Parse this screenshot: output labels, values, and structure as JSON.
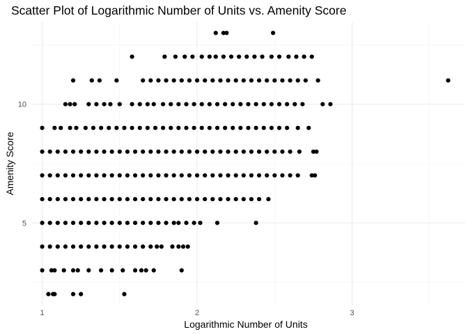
{
  "chart_data": {
    "type": "scatter",
    "title": "Scatter Plot of Logarithmic Number of Units vs. Amenity Score",
    "xlabel": "Logarithmic Number of Units",
    "ylabel": "Amenity Score",
    "xlim": [
      0.93,
      3.73
    ],
    "ylim": [
      1.55,
      13.45
    ],
    "x_ticks": [
      1,
      2,
      3
    ],
    "y_ticks": [
      5,
      10
    ],
    "grid": true,
    "legend": "none",
    "point_color": "#000000",
    "series": [
      {
        "y": 2,
        "x": [
          1.04,
          1.07,
          1.08,
          1.2,
          1.25,
          1.53
        ]
      },
      {
        "y": 3,
        "x": [
          1.0,
          1.06,
          1.08,
          1.14,
          1.2,
          1.23,
          1.3,
          1.38,
          1.45,
          1.52,
          1.6,
          1.64,
          1.67,
          1.72,
          1.9
        ]
      },
      {
        "y": 4,
        "x": [
          1.0,
          1.05,
          1.1,
          1.15,
          1.2,
          1.25,
          1.3,
          1.35,
          1.4,
          1.45,
          1.5,
          1.55,
          1.6,
          1.65,
          1.7,
          1.74,
          1.77,
          1.84,
          1.88,
          1.91,
          1.94
        ]
      },
      {
        "y": 5,
        "x": [
          1.0,
          1.05,
          1.1,
          1.15,
          1.2,
          1.25,
          1.3,
          1.35,
          1.4,
          1.45,
          1.5,
          1.55,
          1.6,
          1.65,
          1.7,
          1.75,
          1.8,
          1.85,
          1.88,
          1.93,
          1.98,
          2.02,
          2.13,
          2.38
        ]
      },
      {
        "y": 6,
        "x": [
          1.0,
          1.05,
          1.1,
          1.15,
          1.2,
          1.25,
          1.3,
          1.35,
          1.4,
          1.45,
          1.5,
          1.55,
          1.6,
          1.65,
          1.7,
          1.75,
          1.8,
          1.85,
          1.9,
          1.95,
          2.0,
          2.05,
          2.1,
          2.15,
          2.2,
          2.25,
          2.3,
          2.35,
          2.4,
          2.46
        ]
      },
      {
        "y": 7,
        "x": [
          1.0,
          1.05,
          1.1,
          1.15,
          1.2,
          1.25,
          1.3,
          1.35,
          1.4,
          1.45,
          1.5,
          1.55,
          1.6,
          1.65,
          1.7,
          1.75,
          1.8,
          1.85,
          1.9,
          1.95,
          2.0,
          2.05,
          2.1,
          2.15,
          2.2,
          2.25,
          2.3,
          2.35,
          2.4,
          2.45,
          2.5,
          2.55,
          2.6,
          2.65,
          2.74,
          2.76
        ]
      },
      {
        "y": 8,
        "x": [
          1.0,
          1.05,
          1.1,
          1.15,
          1.2,
          1.25,
          1.3,
          1.35,
          1.4,
          1.45,
          1.5,
          1.55,
          1.6,
          1.65,
          1.7,
          1.75,
          1.8,
          1.85,
          1.9,
          1.95,
          2.0,
          2.05,
          2.1,
          2.15,
          2.2,
          2.25,
          2.3,
          2.35,
          2.4,
          2.45,
          2.5,
          2.55,
          2.6,
          2.66,
          2.75,
          2.77
        ]
      },
      {
        "y": 9,
        "x": [
          1.0,
          1.08,
          1.12,
          1.18,
          1.22,
          1.28,
          1.33,
          1.38,
          1.43,
          1.48,
          1.53,
          1.58,
          1.63,
          1.68,
          1.73,
          1.78,
          1.83,
          1.88,
          1.93,
          1.98,
          2.03,
          2.08,
          2.13,
          2.18,
          2.23,
          2.28,
          2.33,
          2.38,
          2.43,
          2.48,
          2.53,
          2.58,
          2.65,
          2.72
        ]
      },
      {
        "y": 10,
        "x": [
          1.15,
          1.18,
          1.21,
          1.3,
          1.35,
          1.4,
          1.44,
          1.5,
          1.58,
          1.63,
          1.68,
          1.72,
          1.78,
          1.83,
          1.88,
          1.93,
          1.98,
          2.03,
          2.08,
          2.13,
          2.18,
          2.23,
          2.28,
          2.33,
          2.38,
          2.43,
          2.48,
          2.53,
          2.58,
          2.63,
          2.68,
          2.81,
          2.86
        ]
      },
      {
        "y": 11,
        "x": [
          1.2,
          1.32,
          1.37,
          1.48,
          1.65,
          1.7,
          1.75,
          1.8,
          1.85,
          1.9,
          1.95,
          2.0,
          2.05,
          2.1,
          2.15,
          2.2,
          2.25,
          2.3,
          2.35,
          2.4,
          2.45,
          2.5,
          2.55,
          2.6,
          2.65,
          2.7,
          2.78,
          3.62
        ]
      },
      {
        "y": 12,
        "x": [
          1.58,
          1.79,
          1.86,
          1.92,
          1.97,
          2.03,
          2.08,
          2.12,
          2.17,
          2.22,
          2.27,
          2.32,
          2.37,
          2.42,
          2.48,
          2.53,
          2.59,
          2.64,
          2.69,
          2.74
        ]
      },
      {
        "y": 13,
        "x": [
          2.12,
          2.17,
          2.19,
          2.49
        ]
      }
    ]
  }
}
